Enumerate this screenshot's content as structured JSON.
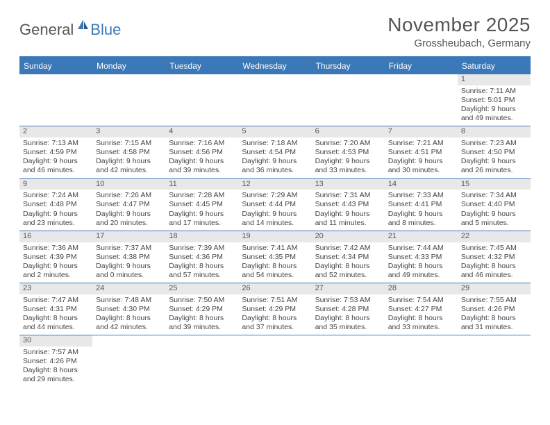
{
  "logo": {
    "general": "General",
    "blue": "Blue"
  },
  "title": "November 2025",
  "location": "Grossheubach, Germany",
  "colors": {
    "header_bg": "#3a78b8",
    "daynum_bg": "#e8e8e8",
    "text": "#444444",
    "title_text": "#555555",
    "border": "#3a78b8"
  },
  "day_names": [
    "Sunday",
    "Monday",
    "Tuesday",
    "Wednesday",
    "Thursday",
    "Friday",
    "Saturday"
  ],
  "weeks": [
    [
      null,
      null,
      null,
      null,
      null,
      null,
      {
        "n": "1",
        "sr": "Sunrise: 7:11 AM",
        "ss": "Sunset: 5:01 PM",
        "d1": "Daylight: 9 hours",
        "d2": "and 49 minutes."
      }
    ],
    [
      {
        "n": "2",
        "sr": "Sunrise: 7:13 AM",
        "ss": "Sunset: 4:59 PM",
        "d1": "Daylight: 9 hours",
        "d2": "and 46 minutes."
      },
      {
        "n": "3",
        "sr": "Sunrise: 7:15 AM",
        "ss": "Sunset: 4:58 PM",
        "d1": "Daylight: 9 hours",
        "d2": "and 42 minutes."
      },
      {
        "n": "4",
        "sr": "Sunrise: 7:16 AM",
        "ss": "Sunset: 4:56 PM",
        "d1": "Daylight: 9 hours",
        "d2": "and 39 minutes."
      },
      {
        "n": "5",
        "sr": "Sunrise: 7:18 AM",
        "ss": "Sunset: 4:54 PM",
        "d1": "Daylight: 9 hours",
        "d2": "and 36 minutes."
      },
      {
        "n": "6",
        "sr": "Sunrise: 7:20 AM",
        "ss": "Sunset: 4:53 PM",
        "d1": "Daylight: 9 hours",
        "d2": "and 33 minutes."
      },
      {
        "n": "7",
        "sr": "Sunrise: 7:21 AM",
        "ss": "Sunset: 4:51 PM",
        "d1": "Daylight: 9 hours",
        "d2": "and 30 minutes."
      },
      {
        "n": "8",
        "sr": "Sunrise: 7:23 AM",
        "ss": "Sunset: 4:50 PM",
        "d1": "Daylight: 9 hours",
        "d2": "and 26 minutes."
      }
    ],
    [
      {
        "n": "9",
        "sr": "Sunrise: 7:24 AM",
        "ss": "Sunset: 4:48 PM",
        "d1": "Daylight: 9 hours",
        "d2": "and 23 minutes."
      },
      {
        "n": "10",
        "sr": "Sunrise: 7:26 AM",
        "ss": "Sunset: 4:47 PM",
        "d1": "Daylight: 9 hours",
        "d2": "and 20 minutes."
      },
      {
        "n": "11",
        "sr": "Sunrise: 7:28 AM",
        "ss": "Sunset: 4:45 PM",
        "d1": "Daylight: 9 hours",
        "d2": "and 17 minutes."
      },
      {
        "n": "12",
        "sr": "Sunrise: 7:29 AM",
        "ss": "Sunset: 4:44 PM",
        "d1": "Daylight: 9 hours",
        "d2": "and 14 minutes."
      },
      {
        "n": "13",
        "sr": "Sunrise: 7:31 AM",
        "ss": "Sunset: 4:43 PM",
        "d1": "Daylight: 9 hours",
        "d2": "and 11 minutes."
      },
      {
        "n": "14",
        "sr": "Sunrise: 7:33 AM",
        "ss": "Sunset: 4:41 PM",
        "d1": "Daylight: 9 hours",
        "d2": "and 8 minutes."
      },
      {
        "n": "15",
        "sr": "Sunrise: 7:34 AM",
        "ss": "Sunset: 4:40 PM",
        "d1": "Daylight: 9 hours",
        "d2": "and 5 minutes."
      }
    ],
    [
      {
        "n": "16",
        "sr": "Sunrise: 7:36 AM",
        "ss": "Sunset: 4:39 PM",
        "d1": "Daylight: 9 hours",
        "d2": "and 2 minutes."
      },
      {
        "n": "17",
        "sr": "Sunrise: 7:37 AM",
        "ss": "Sunset: 4:38 PM",
        "d1": "Daylight: 9 hours",
        "d2": "and 0 minutes."
      },
      {
        "n": "18",
        "sr": "Sunrise: 7:39 AM",
        "ss": "Sunset: 4:36 PM",
        "d1": "Daylight: 8 hours",
        "d2": "and 57 minutes."
      },
      {
        "n": "19",
        "sr": "Sunrise: 7:41 AM",
        "ss": "Sunset: 4:35 PM",
        "d1": "Daylight: 8 hours",
        "d2": "and 54 minutes."
      },
      {
        "n": "20",
        "sr": "Sunrise: 7:42 AM",
        "ss": "Sunset: 4:34 PM",
        "d1": "Daylight: 8 hours",
        "d2": "and 52 minutes."
      },
      {
        "n": "21",
        "sr": "Sunrise: 7:44 AM",
        "ss": "Sunset: 4:33 PM",
        "d1": "Daylight: 8 hours",
        "d2": "and 49 minutes."
      },
      {
        "n": "22",
        "sr": "Sunrise: 7:45 AM",
        "ss": "Sunset: 4:32 PM",
        "d1": "Daylight: 8 hours",
        "d2": "and 46 minutes."
      }
    ],
    [
      {
        "n": "23",
        "sr": "Sunrise: 7:47 AM",
        "ss": "Sunset: 4:31 PM",
        "d1": "Daylight: 8 hours",
        "d2": "and 44 minutes."
      },
      {
        "n": "24",
        "sr": "Sunrise: 7:48 AM",
        "ss": "Sunset: 4:30 PM",
        "d1": "Daylight: 8 hours",
        "d2": "and 42 minutes."
      },
      {
        "n": "25",
        "sr": "Sunrise: 7:50 AM",
        "ss": "Sunset: 4:29 PM",
        "d1": "Daylight: 8 hours",
        "d2": "and 39 minutes."
      },
      {
        "n": "26",
        "sr": "Sunrise: 7:51 AM",
        "ss": "Sunset: 4:29 PM",
        "d1": "Daylight: 8 hours",
        "d2": "and 37 minutes."
      },
      {
        "n": "27",
        "sr": "Sunrise: 7:53 AM",
        "ss": "Sunset: 4:28 PM",
        "d1": "Daylight: 8 hours",
        "d2": "and 35 minutes."
      },
      {
        "n": "28",
        "sr": "Sunrise: 7:54 AM",
        "ss": "Sunset: 4:27 PM",
        "d1": "Daylight: 8 hours",
        "d2": "and 33 minutes."
      },
      {
        "n": "29",
        "sr": "Sunrise: 7:55 AM",
        "ss": "Sunset: 4:26 PM",
        "d1": "Daylight: 8 hours",
        "d2": "and 31 minutes."
      }
    ],
    [
      {
        "n": "30",
        "sr": "Sunrise: 7:57 AM",
        "ss": "Sunset: 4:26 PM",
        "d1": "Daylight: 8 hours",
        "d2": "and 29 minutes."
      },
      null,
      null,
      null,
      null,
      null,
      null
    ]
  ]
}
